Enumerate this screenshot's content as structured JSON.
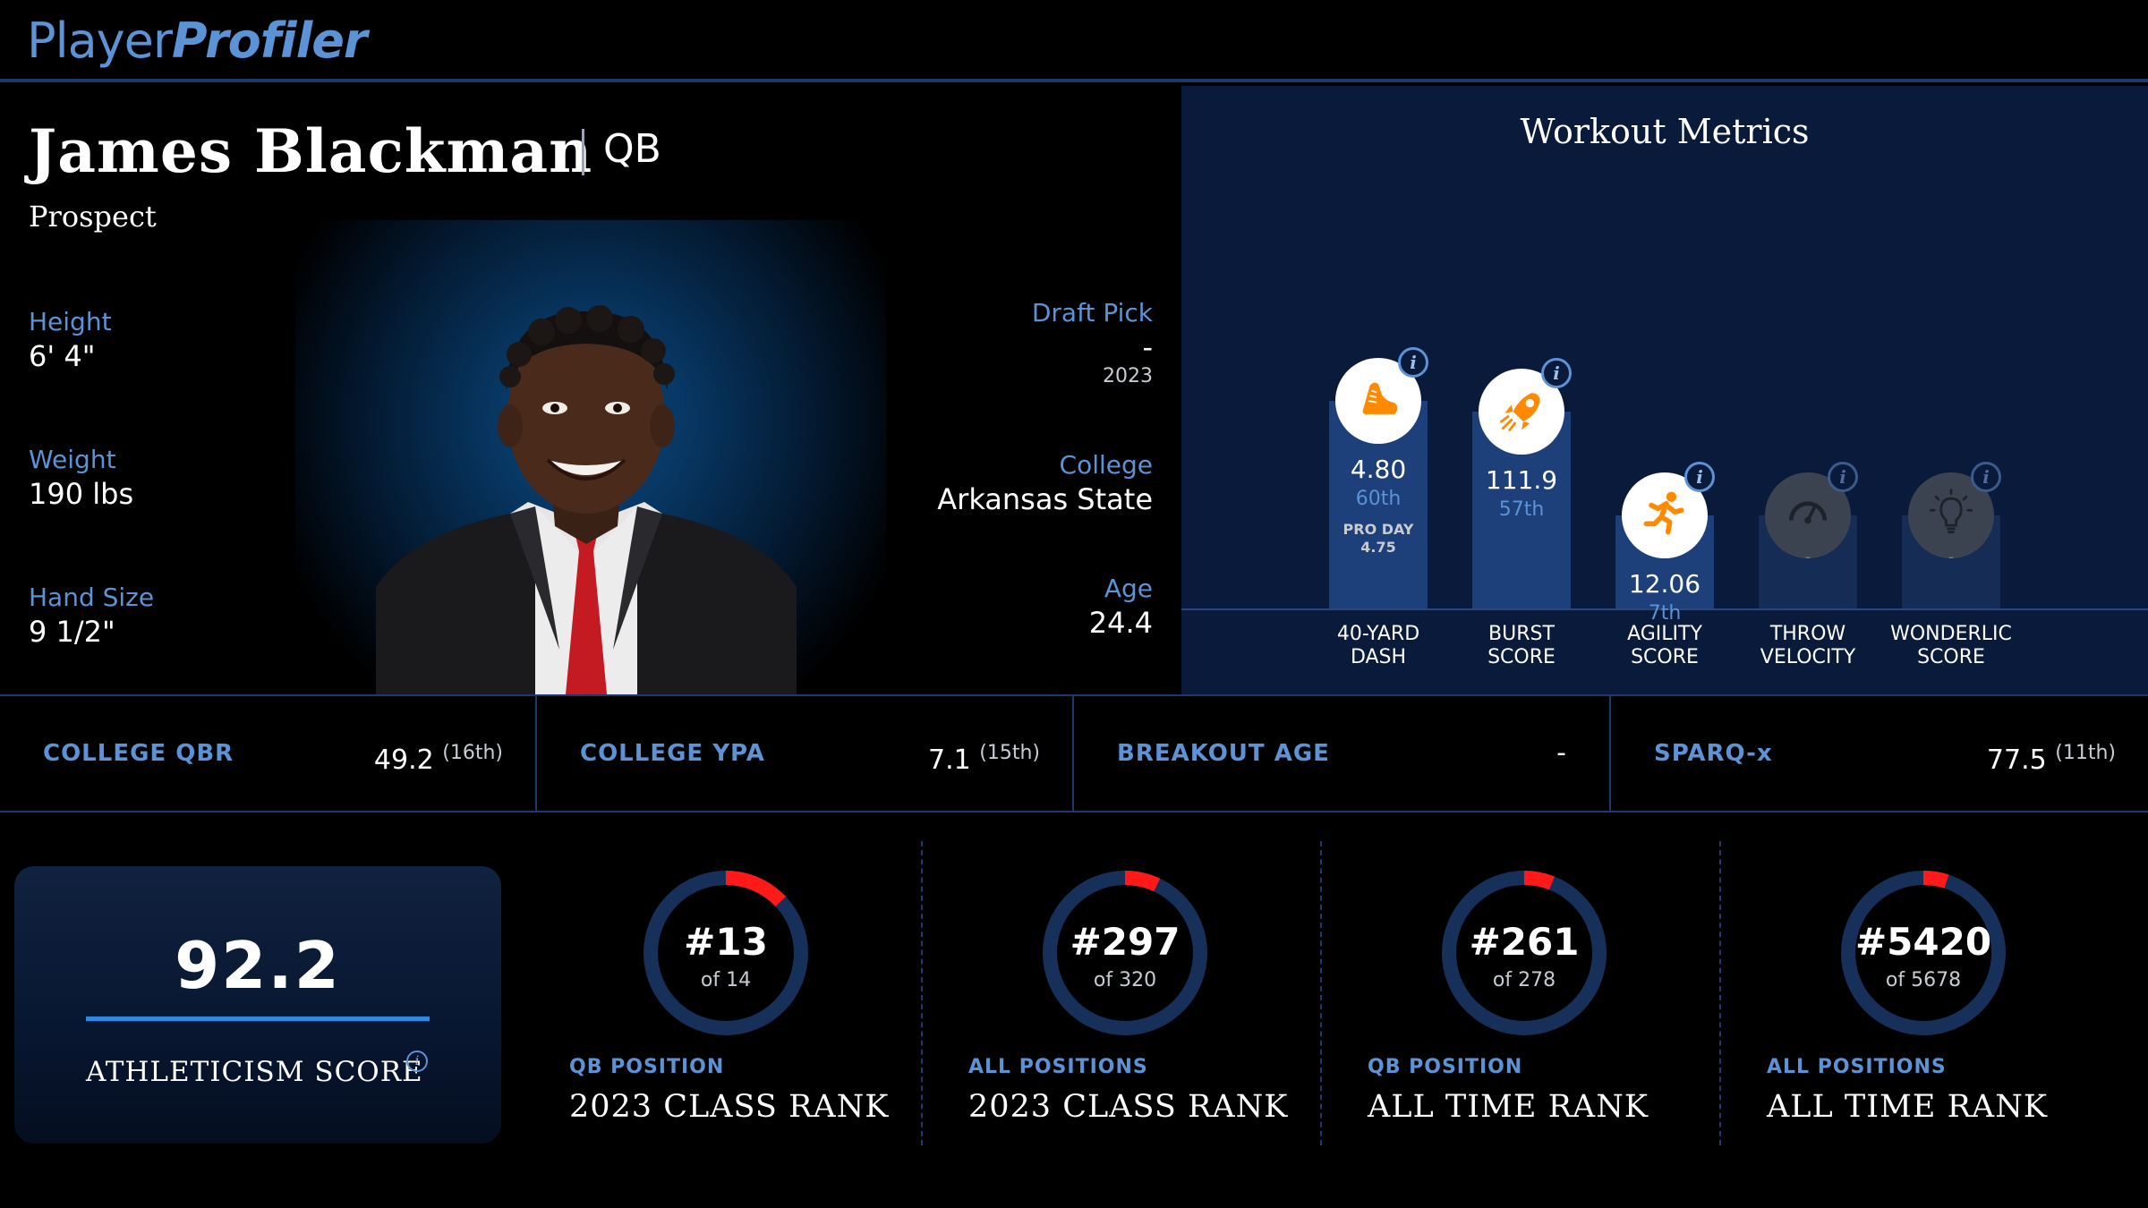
{
  "brand": {
    "part1": "Player",
    "part2": "Profiler"
  },
  "player": {
    "name": "James Blackman",
    "position": "QB",
    "status": "Prospect",
    "height_label": "Height",
    "height": "6' 4\"",
    "weight_label": "Weight",
    "weight": "190 lbs",
    "hand_label": "Hand Size",
    "hand": "9 1/2\"",
    "draft_label": "Draft Pick",
    "draft_pick": "-",
    "draft_year": "2023",
    "college_label": "College",
    "college": "Arkansas State",
    "age_label": "Age",
    "age": "24.4"
  },
  "workout": {
    "title": "Workout Metrics",
    "metrics": [
      {
        "label_1": "40-YARD",
        "label_2": "DASH",
        "value": "4.80",
        "rank": "60th",
        "pro_day_label": "PRO DAY",
        "pro_day_value": "4.75",
        "icon": "running-shoe-icon",
        "fill": 0.58
      },
      {
        "label_1": "BURST",
        "label_2": "SCORE",
        "value": "111.9",
        "rank": "57th",
        "icon": "rocket-icon",
        "fill": 0.55
      },
      {
        "label_1": "AGILITY",
        "label_2": "SCORE",
        "value": "12.06",
        "rank": "7th",
        "icon": "runner-icon",
        "fill": 0.26
      },
      {
        "label_1": "THROW",
        "label_2": "VELOCITY",
        "value": "-",
        "icon": "speedometer-icon",
        "fill": 0.26
      },
      {
        "label_1": "WONDERLIC",
        "label_2": "SCORE",
        "value": "-",
        "icon": "lightbulb-icon",
        "fill": 0.26
      }
    ],
    "info_glyph": "i"
  },
  "stats": [
    {
      "label": "COLLEGE QBR",
      "value": "49.2",
      "rank": "(16th)"
    },
    {
      "label": "COLLEGE YPA",
      "value": "7.1",
      "rank": "(15th)"
    },
    {
      "label": "BREAKOUT AGE",
      "value": "-",
      "rank": ""
    },
    {
      "label": "SPARQ-x",
      "value": "77.5",
      "rank": "(11th)"
    }
  ],
  "athleticism": {
    "value": "92.2",
    "label": "ATHLETICISM SCORE"
  },
  "ranks": [
    {
      "rank": "#13",
      "of": "of 14",
      "sub": "QB POSITION",
      "main": "2023 CLASS RANK",
      "fraction": 0.13
    },
    {
      "rank": "#297",
      "of": "of 320",
      "sub": "ALL POSITIONS",
      "main": "2023 CLASS RANK",
      "fraction": 0.07
    },
    {
      "rank": "#261",
      "of": "of 278",
      "sub": "QB POSITION",
      "main": "ALL TIME RANK",
      "fraction": 0.06
    },
    {
      "rank": "#5420",
      "of": "of 5678",
      "sub": "ALL POSITIONS",
      "main": "ALL TIME RANK",
      "fraction": 0.05
    }
  ],
  "colors": {
    "accent": "#5b93d6",
    "ring_track": "#17305a",
    "ring_fill": "#ff1a1a",
    "icon_orange": "#ff8a00"
  }
}
